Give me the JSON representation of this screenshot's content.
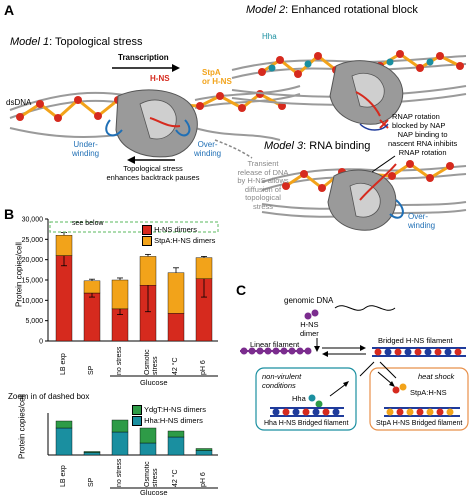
{
  "panelA": {
    "letter": "A",
    "model1_prefix": "Model 1",
    "model1_title": ": Topological stress",
    "transcription": "Transcription",
    "hns": "H-NS",
    "stpa_l1": "StpA",
    "stpa_l2": "or H-NS",
    "dsdna": "dsDNA",
    "under_l1": "Under-",
    "under_l2": "winding",
    "over_l1": "Over-",
    "over_l2": "winding",
    "stress_l1": "Topological stress",
    "stress_l2": "enhances backtrack pauses",
    "release_l1": "Transient",
    "release_l2": "release of DNA",
    "release_l3": "by H-NS allows",
    "release_l4": "diffusion of",
    "release_l5": "topological",
    "release_l6": "stress",
    "model2_prefix": "Model 2",
    "model2_title": ": Enhanced rotational block",
    "hha": "Hha",
    "rot_l1": "RNAP rotation",
    "rot_l2": "blocked by NAP",
    "model3_prefix": "Model 3",
    "model3_title": ": RNA binding",
    "nap_l1": "NAP binding to",
    "nap_l2": "nascent RNA inhibits",
    "nap_l3": "RNAP rotation",
    "over3_l1": "Over-",
    "over3_l2": "winding",
    "colors": {
      "hns": "#d62a1e",
      "stpa": "#f2a31a",
      "hha": "#1a8fa0",
      "dna": "#9a9a9a",
      "rnap": "#8a8a8a"
    }
  },
  "panelB": {
    "letter": "B",
    "see_below": "see below",
    "glucose": "Glucose",
    "zoom_title": "Zoom in of dashed box",
    "glucose2": "Glucose"
  },
  "panelC": {
    "letter": "C",
    "genomic": "genomic DNA",
    "hns_dimer_l1": "H-NS",
    "hns_dimer_l2": "dimer",
    "linear": "Linear filament",
    "bridged": "Bridged H-NS filament",
    "nonvir_l1": "non-virulent",
    "nonvir_l2": "conditions",
    "hha": "Hha",
    "hha_bridged": "Hha H-NS Bridged filament",
    "heat": "heat shock",
    "stpa_hns": "StpA:H-NS",
    "stpa_bridged": "StpA H-NS Bridged filament",
    "colors": {
      "purple": "#7b2c8e",
      "blue": "#1f3b9b",
      "red": "#d62a1e",
      "orange": "#f2a31a",
      "green": "#2e9b47",
      "teal_box": "#1a8fa0",
      "orange_box": "#e8904a"
    }
  },
  "chart_data": [
    {
      "type": "bar",
      "stacked": true,
      "categories": [
        "LB exp",
        "SP",
        "no stress",
        "Osmotic stress",
        "42 °C",
        "pH 6"
      ],
      "series": [
        {
          "name": "H-NS dimers",
          "color": "#d62a1e",
          "values": [
            21000,
            11800,
            7900,
            13700,
            6800,
            15300
          ]
        },
        {
          "name": "StpA:H-NS dimers",
          "color": "#f2a31a",
          "values": [
            5000,
            3000,
            7100,
            7100,
            10000,
            5200
          ]
        }
      ],
      "errors_top": [
        700,
        400,
        500,
        500,
        1200,
        300
      ],
      "errors_hns": [
        2500,
        1000,
        1400,
        6500,
        0,
        4500
      ],
      "ylabel": "Protein copies/cell",
      "ylim": [
        0,
        30000
      ],
      "yticks": [
        "0",
        "5,000",
        "10,000",
        "15,000",
        "20,000",
        "25,000",
        "30,000"
      ],
      "legend_position": "top-right"
    },
    {
      "type": "bar",
      "stacked": true,
      "categories": [
        "LB exp",
        "SP",
        "no stress",
        "Osmotic stress",
        "42 °C",
        "pH 6"
      ],
      "series": [
        {
          "name": "Hha:H-NS dimers",
          "color": "#1a8fa0",
          "values": [
            270,
            25,
            230,
            120,
            180,
            45
          ]
        },
        {
          "name": "YdgT:H-NS dimers",
          "color": "#2e9b47",
          "values": [
            70,
            10,
            120,
            150,
            60,
            20
          ]
        }
      ],
      "ylabel": "Protein copies/cell",
      "legend_position": "top-right"
    }
  ]
}
